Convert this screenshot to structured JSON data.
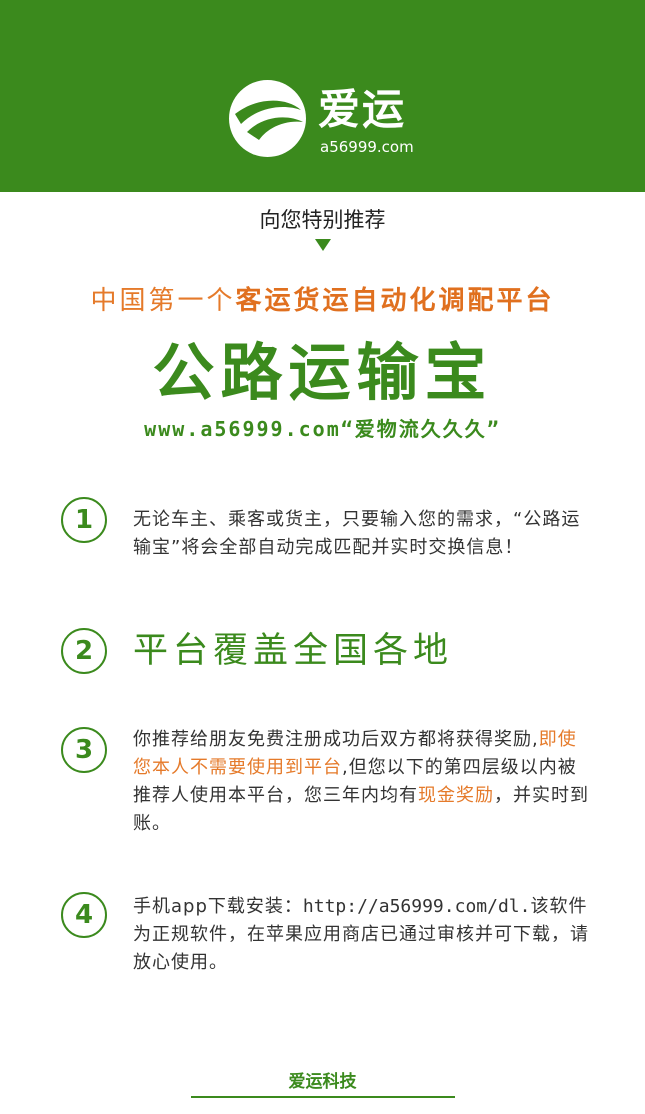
{
  "header": {
    "logo_name": "爱运",
    "logo_domain": "a56999.com"
  },
  "intro": {
    "recommend": "向您特别推荐"
  },
  "tagline": {
    "part1": "中国第一个",
    "part2": "客运货运自动化调配平台"
  },
  "title": "公路运输宝",
  "url_slogan": "www.a56999.com“爱物流久久久”",
  "items": [
    {
      "number": "1",
      "text": "无论车主、乘客或货主，只要输入您的需求，“公路运输宝”将会全部自动完成匹配并实时交换信息！"
    },
    {
      "number": "2",
      "text": "平台覆盖全国各地"
    },
    {
      "number": "3",
      "text_a": "你推荐给朋友免费注册成功后双方都将获得奖励,",
      "text_b": "即使您本人不需要使用到平台",
      "text_c": ",但您以下的第四层级以内被推荐人使用本平台，您三年内均有",
      "text_d": "现金奖励",
      "text_e": "，并实时到账。"
    },
    {
      "number": "4",
      "text_a": "手机app下载安装：",
      "text_b": "http://a56999.com/dl.",
      "text_c": "该软件为正规软件，在苹果应用商店已通过审核并可下载，请放心使用。"
    }
  ],
  "footer": {
    "text": "爱运科技"
  },
  "colors": {
    "brand_green": "#3b8a1d",
    "accent_orange": "#e57a2a"
  }
}
